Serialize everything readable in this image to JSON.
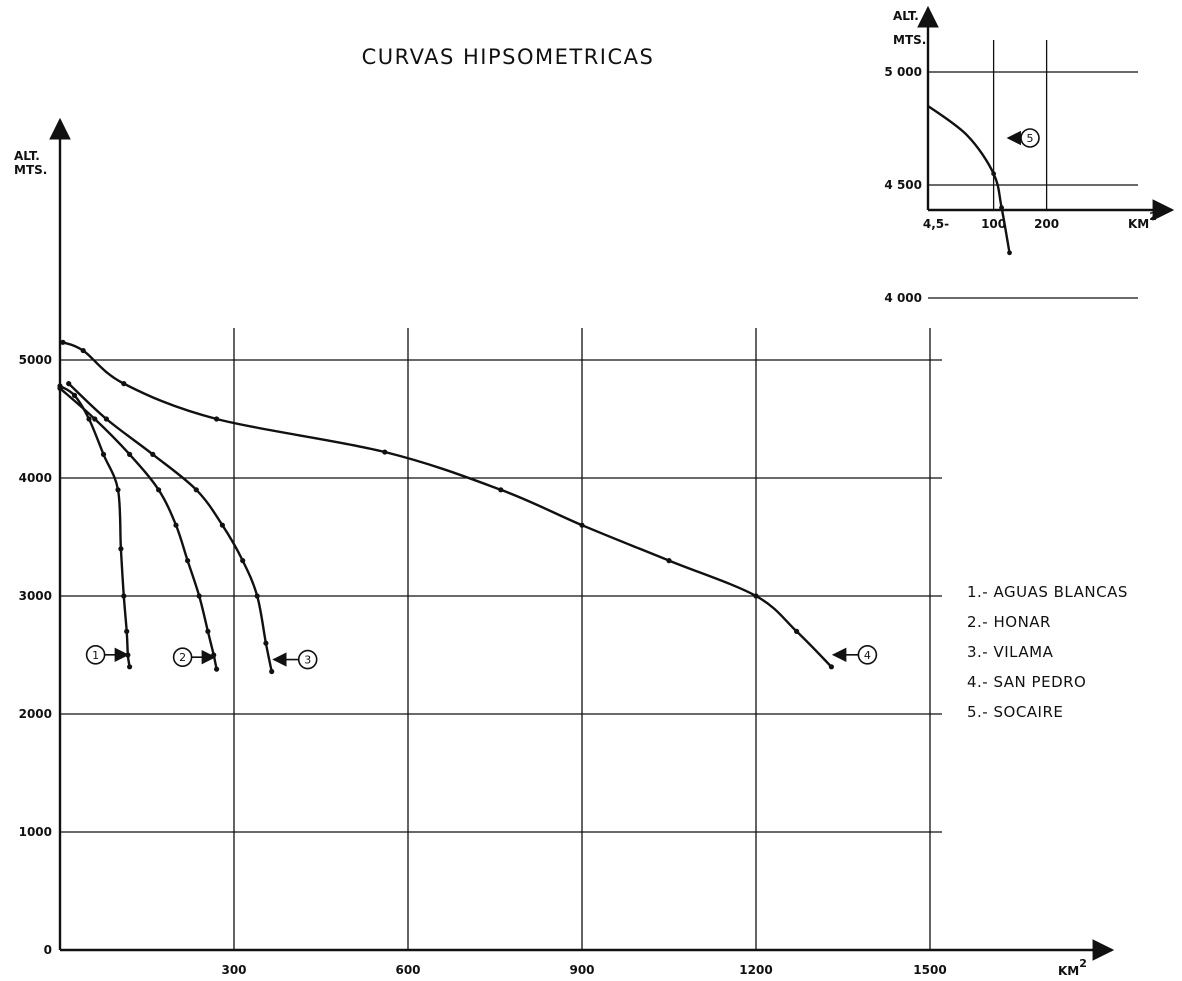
{
  "chart_data": [
    {
      "type": "line",
      "title": "CURVAS HIPSOMETRICAS",
      "ylabel_line1": "ALT.",
      "ylabel_line2": "MTS.",
      "xlabel": "KM",
      "xlabel_sup": "2",
      "xlim": [
        0,
        1500
      ],
      "ylim": [
        0,
        5000
      ],
      "x_ticks": [
        "300",
        "600",
        "900",
        "1200",
        "1500"
      ],
      "y_ticks": [
        "0",
        "1000",
        "2000",
        "3000",
        "4000",
        "5000"
      ],
      "grid": true,
      "legend_position": "right",
      "legend": [
        "1.- AGUAS BLANCAS",
        "2.- HONAR",
        "3.- VILAMA",
        "4.- SAN PEDRO",
        "5.- SOCAIRE"
      ],
      "series": [
        {
          "name": "1",
          "x": [
            0,
            25,
            50,
            75,
            100,
            105,
            110,
            115,
            117,
            120
          ],
          "y": [
            4780,
            4700,
            4500,
            4200,
            3900,
            3400,
            3000,
            2700,
            2500,
            2400
          ]
        },
        {
          "name": "2",
          "x": [
            0,
            60,
            120,
            170,
            200,
            220,
            240,
            255,
            265,
            270
          ],
          "y": [
            4760,
            4500,
            4200,
            3900,
            3600,
            3300,
            3000,
            2700,
            2500,
            2380
          ]
        },
        {
          "name": "3",
          "x": [
            15,
            80,
            160,
            235,
            280,
            315,
            340,
            355,
            365
          ],
          "y": [
            4800,
            4500,
            4200,
            3900,
            3600,
            3300,
            3000,
            2600,
            2360
          ]
        },
        {
          "name": "4",
          "x": [
            5,
            40,
            110,
            270,
            560,
            760,
            900,
            1050,
            1200,
            1270,
            1330
          ],
          "y": [
            5150,
            5080,
            4800,
            4500,
            4220,
            3900,
            3600,
            3300,
            3000,
            2700,
            2400
          ]
        }
      ]
    },
    {
      "type": "line",
      "ylabel_line1": "ALT.",
      "ylabel_line2": "MTS.",
      "xlabel": "KM",
      "xlabel_sup": "2",
      "x_ticks": [
        "4,5-",
        "100",
        "200"
      ],
      "y_ticks": [
        "4 000",
        "4 500",
        "5 000"
      ],
      "ylim": [
        3900,
        5100
      ],
      "grid": true,
      "series": [
        {
          "name": "5",
          "x": [
            4.5,
            50,
            100,
            115,
            130
          ],
          "y": [
            4850,
            4720,
            4550,
            4400,
            4200
          ]
        }
      ]
    }
  ]
}
